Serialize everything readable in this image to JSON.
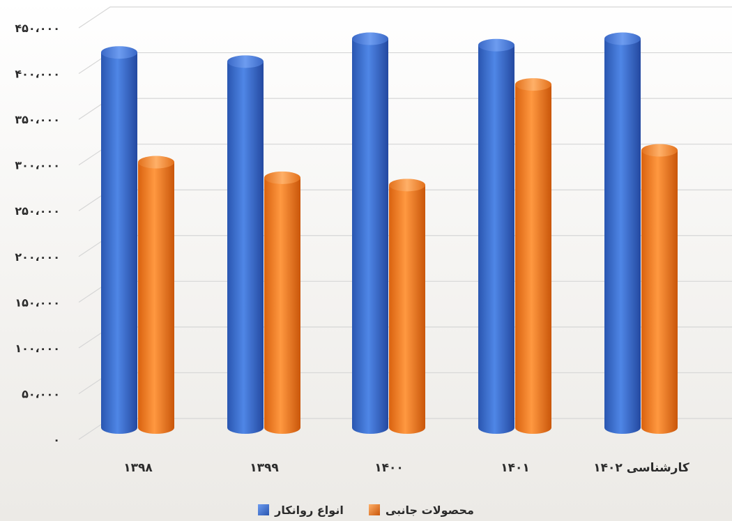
{
  "chart_data": {
    "type": "bar",
    "title": "",
    "xlabel": "",
    "ylabel": "",
    "categories": [
      "۱۳۹۸",
      "۱۳۹۹",
      "۱۴۰۰",
      "۱۴۰۱",
      "کارشناسی ۱۴۰۲"
    ],
    "series": [
      {
        "name": "انواع روانکار",
        "color": "#3b6fd0",
        "values": [
          430000,
          420000,
          445000,
          438000,
          445000
        ]
      },
      {
        "name": "محصولات جانبی",
        "color": "#ef7c22",
        "values": [
          310000,
          293000,
          285000,
          395000,
          323000
        ]
      }
    ],
    "ylim": [
      0,
      450000
    ],
    "yticks": [
      0,
      50000,
      100000,
      150000,
      200000,
      250000,
      300000,
      350000,
      400000,
      450000
    ],
    "ytick_labels": [
      "۰",
      "۵۰،۰۰۰",
      "۱۰۰،۰۰۰",
      "۱۵۰،۰۰۰",
      "۲۰۰،۰۰۰",
      "۲۵۰،۰۰۰",
      "۳۰۰،۰۰۰",
      "۳۵۰،۰۰۰",
      "۴۰۰،۰۰۰",
      "۴۵۰،۰۰۰"
    ],
    "grid": true,
    "legend_position": "bottom"
  },
  "legend": {
    "series1_label": "انواع روانکار",
    "series2_label": "محصولات جانبی"
  }
}
